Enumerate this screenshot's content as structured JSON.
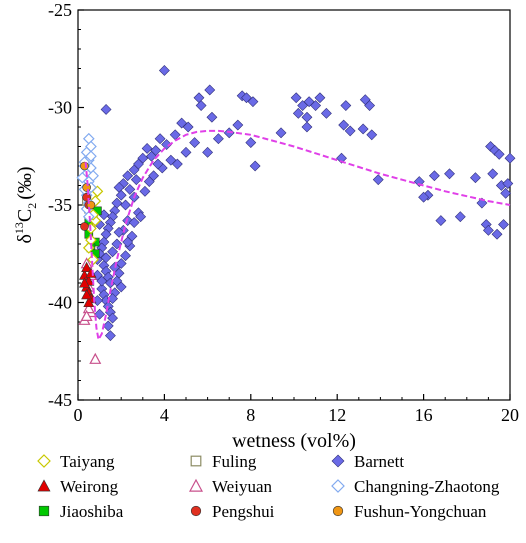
{
  "chart_data": {
    "type": "scatter",
    "xlabel": "wetness (vol%)",
    "ylabel_parts": {
      "delta": "δ",
      "sup": "13",
      "c": "C",
      "sub": "2",
      "unit": "(‰)"
    },
    "xlim": [
      0,
      20
    ],
    "ylim": [
      -45,
      -25
    ],
    "x_ticks": [
      0,
      4,
      8,
      12,
      16,
      20
    ],
    "y_ticks": [
      -25,
      -30,
      -35,
      -40,
      -45
    ],
    "grid": false,
    "legend_position": "bottom",
    "series": [
      {
        "name": "Taiyang",
        "marker": "diamond-open",
        "color": "#c8c800",
        "points": [
          [
            0.9,
            -34.3
          ],
          [
            0.8,
            -35.8
          ],
          [
            0.7,
            -35.5
          ],
          [
            0.6,
            -36.8
          ],
          [
            0.5,
            -37.2
          ],
          [
            0.7,
            -37.8
          ],
          [
            0.6,
            -36.2
          ],
          [
            0.8,
            -34.8
          ]
        ]
      },
      {
        "name": "Weirong",
        "marker": "triangle-filled",
        "color": "#e00000",
        "points": [
          [
            0.3,
            -38.6
          ],
          [
            0.4,
            -39.2
          ],
          [
            0.5,
            -39.5
          ],
          [
            0.4,
            -38.2
          ],
          [
            0.6,
            -39.8
          ],
          [
            0.5,
            -38.9
          ],
          [
            0.3,
            -39.0
          ],
          [
            0.6,
            -38.5
          ],
          [
            0.5,
            -40.0
          ],
          [
            0.4,
            -39.6
          ]
        ]
      },
      {
        "name": "Jiaoshiba",
        "marker": "square-filled",
        "color": "#00c800",
        "points": [
          [
            0.5,
            -36.5
          ],
          [
            0.8,
            -36.9
          ],
          [
            0.6,
            -37.2
          ],
          [
            0.8,
            -37.5
          ],
          [
            0.5,
            -35.8
          ],
          [
            0.9,
            -35.3
          ]
        ]
      },
      {
        "name": "Fuling",
        "marker": "square-open",
        "color": "#8c8c64",
        "points": [
          [
            0.5,
            -35.2
          ],
          [
            0.6,
            -36.0
          ],
          [
            0.4,
            -34.8
          ],
          [
            0.7,
            -35.6
          ]
        ]
      },
      {
        "name": "Weiyuan",
        "marker": "triangle-open",
        "color": "#c8508c",
        "points": [
          [
            0.8,
            -42.9
          ],
          [
            0.3,
            -40.9
          ],
          [
            0.6,
            -40.5
          ],
          [
            0.5,
            -40.3
          ],
          [
            0.4,
            -40.7
          ],
          [
            0.5,
            -39.2
          ],
          [
            0.6,
            -38.6
          ],
          [
            0.4,
            -38.0
          ]
        ]
      },
      {
        "name": "Pengshui",
        "marker": "circle-filled",
        "color": "#e03020",
        "points": [
          [
            0.4,
            -34.6
          ],
          [
            0.5,
            -35.0
          ],
          [
            0.3,
            -36.1
          ]
        ]
      },
      {
        "name": "Barnett",
        "marker": "diamond-filled",
        "color": "#6a6ae6",
        "points": [
          [
            4.0,
            -28.1
          ],
          [
            1.3,
            -30.1
          ],
          [
            6.1,
            -29.1
          ],
          [
            5.6,
            -29.5
          ],
          [
            5.7,
            -29.9
          ],
          [
            7.6,
            -29.4
          ],
          [
            7.8,
            -29.5
          ],
          [
            8.1,
            -29.7
          ],
          [
            10.1,
            -29.5
          ],
          [
            10.4,
            -29.9
          ],
          [
            10.7,
            -29.7
          ],
          [
            11.0,
            -29.9
          ],
          [
            11.2,
            -29.5
          ],
          [
            12.4,
            -29.9
          ],
          [
            13.3,
            -29.6
          ],
          [
            13.5,
            -29.9
          ],
          [
            10.2,
            -30.3
          ],
          [
            10.6,
            -30.5
          ],
          [
            11.5,
            -30.3
          ],
          [
            12.3,
            -30.9
          ],
          [
            6.2,
            -30.5
          ],
          [
            4.8,
            -30.8
          ],
          [
            4.5,
            -31.4
          ],
          [
            5.1,
            -31.0
          ],
          [
            3.8,
            -31.6
          ],
          [
            4.1,
            -31.9
          ],
          [
            3.6,
            -32.2
          ],
          [
            3.2,
            -32.1
          ],
          [
            3.0,
            -32.6
          ],
          [
            2.8,
            -32.9
          ],
          [
            2.6,
            -33.2
          ],
          [
            2.3,
            -33.5
          ],
          [
            2.1,
            -33.9
          ],
          [
            1.9,
            -34.1
          ],
          [
            2.0,
            -34.5
          ],
          [
            1.8,
            -34.9
          ],
          [
            1.7,
            -35.3
          ],
          [
            1.6,
            -35.6
          ],
          [
            1.5,
            -35.9
          ],
          [
            1.4,
            -36.2
          ],
          [
            1.3,
            -36.5
          ],
          [
            1.2,
            -36.9
          ],
          [
            1.1,
            -37.2
          ],
          [
            1.0,
            -37.5
          ],
          [
            0.9,
            -37.8
          ],
          [
            1.2,
            -38.1
          ],
          [
            1.3,
            -38.4
          ],
          [
            1.4,
            -38.7
          ],
          [
            1.5,
            -39.0
          ],
          [
            1.1,
            -39.3
          ],
          [
            1.2,
            -39.6
          ],
          [
            1.3,
            -39.9
          ],
          [
            1.4,
            -40.2
          ],
          [
            1.5,
            -40.5
          ],
          [
            1.6,
            -40.8
          ],
          [
            1.4,
            -41.2
          ],
          [
            1.5,
            -41.7
          ],
          [
            1.0,
            -40.6
          ],
          [
            0.9,
            -39.9
          ],
          [
            1.7,
            -39.5
          ],
          [
            1.8,
            -38.9
          ],
          [
            1.9,
            -38.5
          ],
          [
            2.0,
            -38.0
          ],
          [
            2.2,
            -37.6
          ],
          [
            2.4,
            -37.1
          ],
          [
            2.5,
            -36.6
          ],
          [
            2.1,
            -36.3
          ],
          [
            2.3,
            -35.8
          ],
          [
            2.8,
            -35.4
          ],
          [
            2.9,
            -35.6
          ],
          [
            2.6,
            -34.6
          ],
          [
            3.1,
            -34.3
          ],
          [
            3.3,
            -33.8
          ],
          [
            3.5,
            -33.5
          ],
          [
            3.9,
            -33.1
          ],
          [
            4.3,
            -32.7
          ],
          [
            4.6,
            -32.9
          ],
          [
            5.0,
            -32.3
          ],
          [
            5.4,
            -31.8
          ],
          [
            6.0,
            -32.3
          ],
          [
            6.5,
            -31.6
          ],
          [
            7.0,
            -31.3
          ],
          [
            7.4,
            -30.9
          ],
          [
            8.0,
            -31.8
          ],
          [
            8.2,
            -33.0
          ],
          [
            9.4,
            -31.3
          ],
          [
            10.6,
            -31.0
          ],
          [
            12.2,
            -32.6
          ],
          [
            12.6,
            -31.2
          ],
          [
            13.2,
            -31.1
          ],
          [
            13.6,
            -31.4
          ],
          [
            13.9,
            -33.7
          ],
          [
            15.8,
            -33.8
          ],
          [
            16.2,
            -34.5
          ],
          [
            16.5,
            -33.5
          ],
          [
            16.0,
            -34.6
          ],
          [
            17.2,
            -33.4
          ],
          [
            17.7,
            -35.6
          ],
          [
            18.4,
            -33.6
          ],
          [
            18.9,
            -36.0
          ],
          [
            19.1,
            -32.0
          ],
          [
            19.3,
            -32.2
          ],
          [
            19.5,
            -32.4
          ],
          [
            19.2,
            -33.4
          ],
          [
            19.6,
            -34.0
          ],
          [
            19.8,
            -34.4
          ],
          [
            19.9,
            -33.9
          ],
          [
            20.0,
            -32.6
          ],
          [
            19.4,
            -36.5
          ],
          [
            19.7,
            -36.0
          ],
          [
            19.0,
            -36.3
          ],
          [
            18.7,
            -34.9
          ],
          [
            16.8,
            -35.8
          ],
          [
            1.6,
            -37.4
          ],
          [
            1.7,
            -38.2
          ],
          [
            1.9,
            -36.4
          ],
          [
            2.2,
            -35.0
          ],
          [
            2.4,
            -34.2
          ],
          [
            2.7,
            -33.7
          ],
          [
            3.4,
            -32.5
          ],
          [
            3.7,
            -32.9
          ],
          [
            1.0,
            -36.0
          ],
          [
            1.1,
            -38.9
          ],
          [
            1.3,
            -37.7
          ],
          [
            0.9,
            -38.6
          ],
          [
            1.2,
            -35.5
          ],
          [
            1.8,
            -37.0
          ],
          [
            2.0,
            -39.2
          ],
          [
            1.6,
            -39.8
          ],
          [
            2.3,
            -36.9
          ],
          [
            2.6,
            -35.9
          ]
        ]
      },
      {
        "name": "Changning-Zhaotong",
        "marker": "diamond-open",
        "color": "#82aaf0",
        "points": [
          [
            0.5,
            -31.6
          ],
          [
            0.6,
            -32.0
          ],
          [
            0.4,
            -32.3
          ],
          [
            0.5,
            -32.7
          ],
          [
            0.6,
            -33.1
          ],
          [
            0.4,
            -33.4
          ],
          [
            0.5,
            -33.8
          ],
          [
            0.6,
            -34.1
          ],
          [
            0.4,
            -34.5
          ],
          [
            0.5,
            -34.9
          ],
          [
            0.3,
            -33.0
          ],
          [
            0.2,
            -33.6
          ],
          [
            0.3,
            -34.2
          ],
          [
            0.4,
            -35.2
          ],
          [
            0.5,
            -35.6
          ],
          [
            0.6,
            -32.5
          ],
          [
            0.7,
            -33.5
          ],
          [
            0.3,
            -32.8
          ]
        ]
      },
      {
        "name": "Fushun-Yongchuan",
        "marker": "circle-filled",
        "color": "#f09614",
        "points": [
          [
            0.3,
            -33.0
          ],
          [
            0.6,
            -35.0
          ],
          [
            0.4,
            -34.1
          ]
        ]
      }
    ],
    "fit_curve": {
      "color": "#e040e8",
      "points": [
        [
          0.35,
          -32.8
        ],
        [
          0.45,
          -34.0
        ],
        [
          0.55,
          -35.8
        ],
        [
          0.65,
          -37.8
        ],
        [
          0.75,
          -39.9
        ],
        [
          0.85,
          -41.3
        ],
        [
          0.95,
          -41.9
        ],
        [
          1.1,
          -41.6
        ],
        [
          1.3,
          -40.6
        ],
        [
          1.5,
          -39.4
        ],
        [
          1.8,
          -37.8
        ],
        [
          2.2,
          -36.0
        ],
        [
          2.6,
          -34.6
        ],
        [
          3.0,
          -33.6
        ],
        [
          3.5,
          -32.7
        ],
        [
          4.0,
          -32.1
        ],
        [
          4.5,
          -31.7
        ],
        [
          5.0,
          -31.4
        ],
        [
          5.5,
          -31.25
        ],
        [
          6.0,
          -31.2
        ],
        [
          6.5,
          -31.2
        ],
        [
          7.0,
          -31.25
        ],
        [
          8.0,
          -31.4
        ],
        [
          9.0,
          -31.7
        ],
        [
          10.0,
          -32.0
        ],
        [
          11.0,
          -32.35
        ],
        [
          12.0,
          -32.7
        ],
        [
          13.0,
          -33.05
        ],
        [
          14.0,
          -33.4
        ],
        [
          15.0,
          -33.7
        ],
        [
          16.0,
          -34.0
        ],
        [
          17.0,
          -34.3
        ],
        [
          18.0,
          -34.55
        ],
        [
          19.0,
          -34.8
        ],
        [
          20.0,
          -35.0
        ]
      ]
    },
    "legend_order": [
      "Taiyang",
      "Fuling",
      "Barnett",
      "Weirong",
      "Weiyuan",
      "Changning-Zhaotong",
      "Jiaoshiba",
      "Pengshui",
      "Fushun-Yongchuan"
    ]
  }
}
